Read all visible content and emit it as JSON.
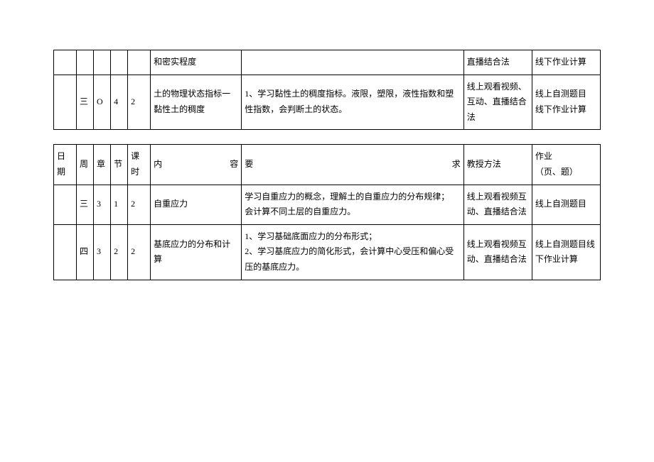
{
  "table1": {
    "rows": [
      {
        "date": "",
        "week": "",
        "chapter": "",
        "section": "",
        "period": "",
        "content": "和密实程度",
        "requirement": "",
        "method": "直播结合法",
        "homework": "线下作业计算"
      },
      {
        "date": "",
        "week": "三",
        "chapter": "O",
        "section": "4",
        "period": "2",
        "content": "土的物理状态指标一黏性土的稠度",
        "requirement": "1、学习黏性土的稠度指标。液限，塑限，液性指数和塑性指数，会判断土的状态。",
        "method": "线上观看视频、互动、直播结合法",
        "homework": "线上自测题目\n线下作业计算"
      }
    ]
  },
  "table2": {
    "header": {
      "date": "日期",
      "week": "周",
      "chapter": "章",
      "section": "节",
      "period": "课时",
      "content_a": "内",
      "content_b": "容",
      "requirement_a": "要",
      "requirement_b": "求",
      "method": "教授方法",
      "homework": "作业\n（页、题）"
    },
    "rows": [
      {
        "date": "",
        "week": "三",
        "chapter": "3",
        "section": "1",
        "period": "2",
        "content": "自重应力",
        "requirement": "学习自重应力的概念，理解土的自重应力的分布规律；\n会计算不同土层的自重应力。",
        "method": "线上观看视频互动、直播结合法",
        "homework": "线上自测题目"
      },
      {
        "date": "",
        "week": "四",
        "chapter": "3",
        "section": "2",
        "period": "2",
        "content": "基底应力的分布和计算",
        "requirement": "1、学习基础底面应力的分布形式；\n2、学习基底应力的简化形式，会计算中心受压和偏心受压的基底应力。",
        "method": "线上观看视频互动、直播结合法",
        "homework": "线上自测题目线下作业计算"
      }
    ]
  }
}
